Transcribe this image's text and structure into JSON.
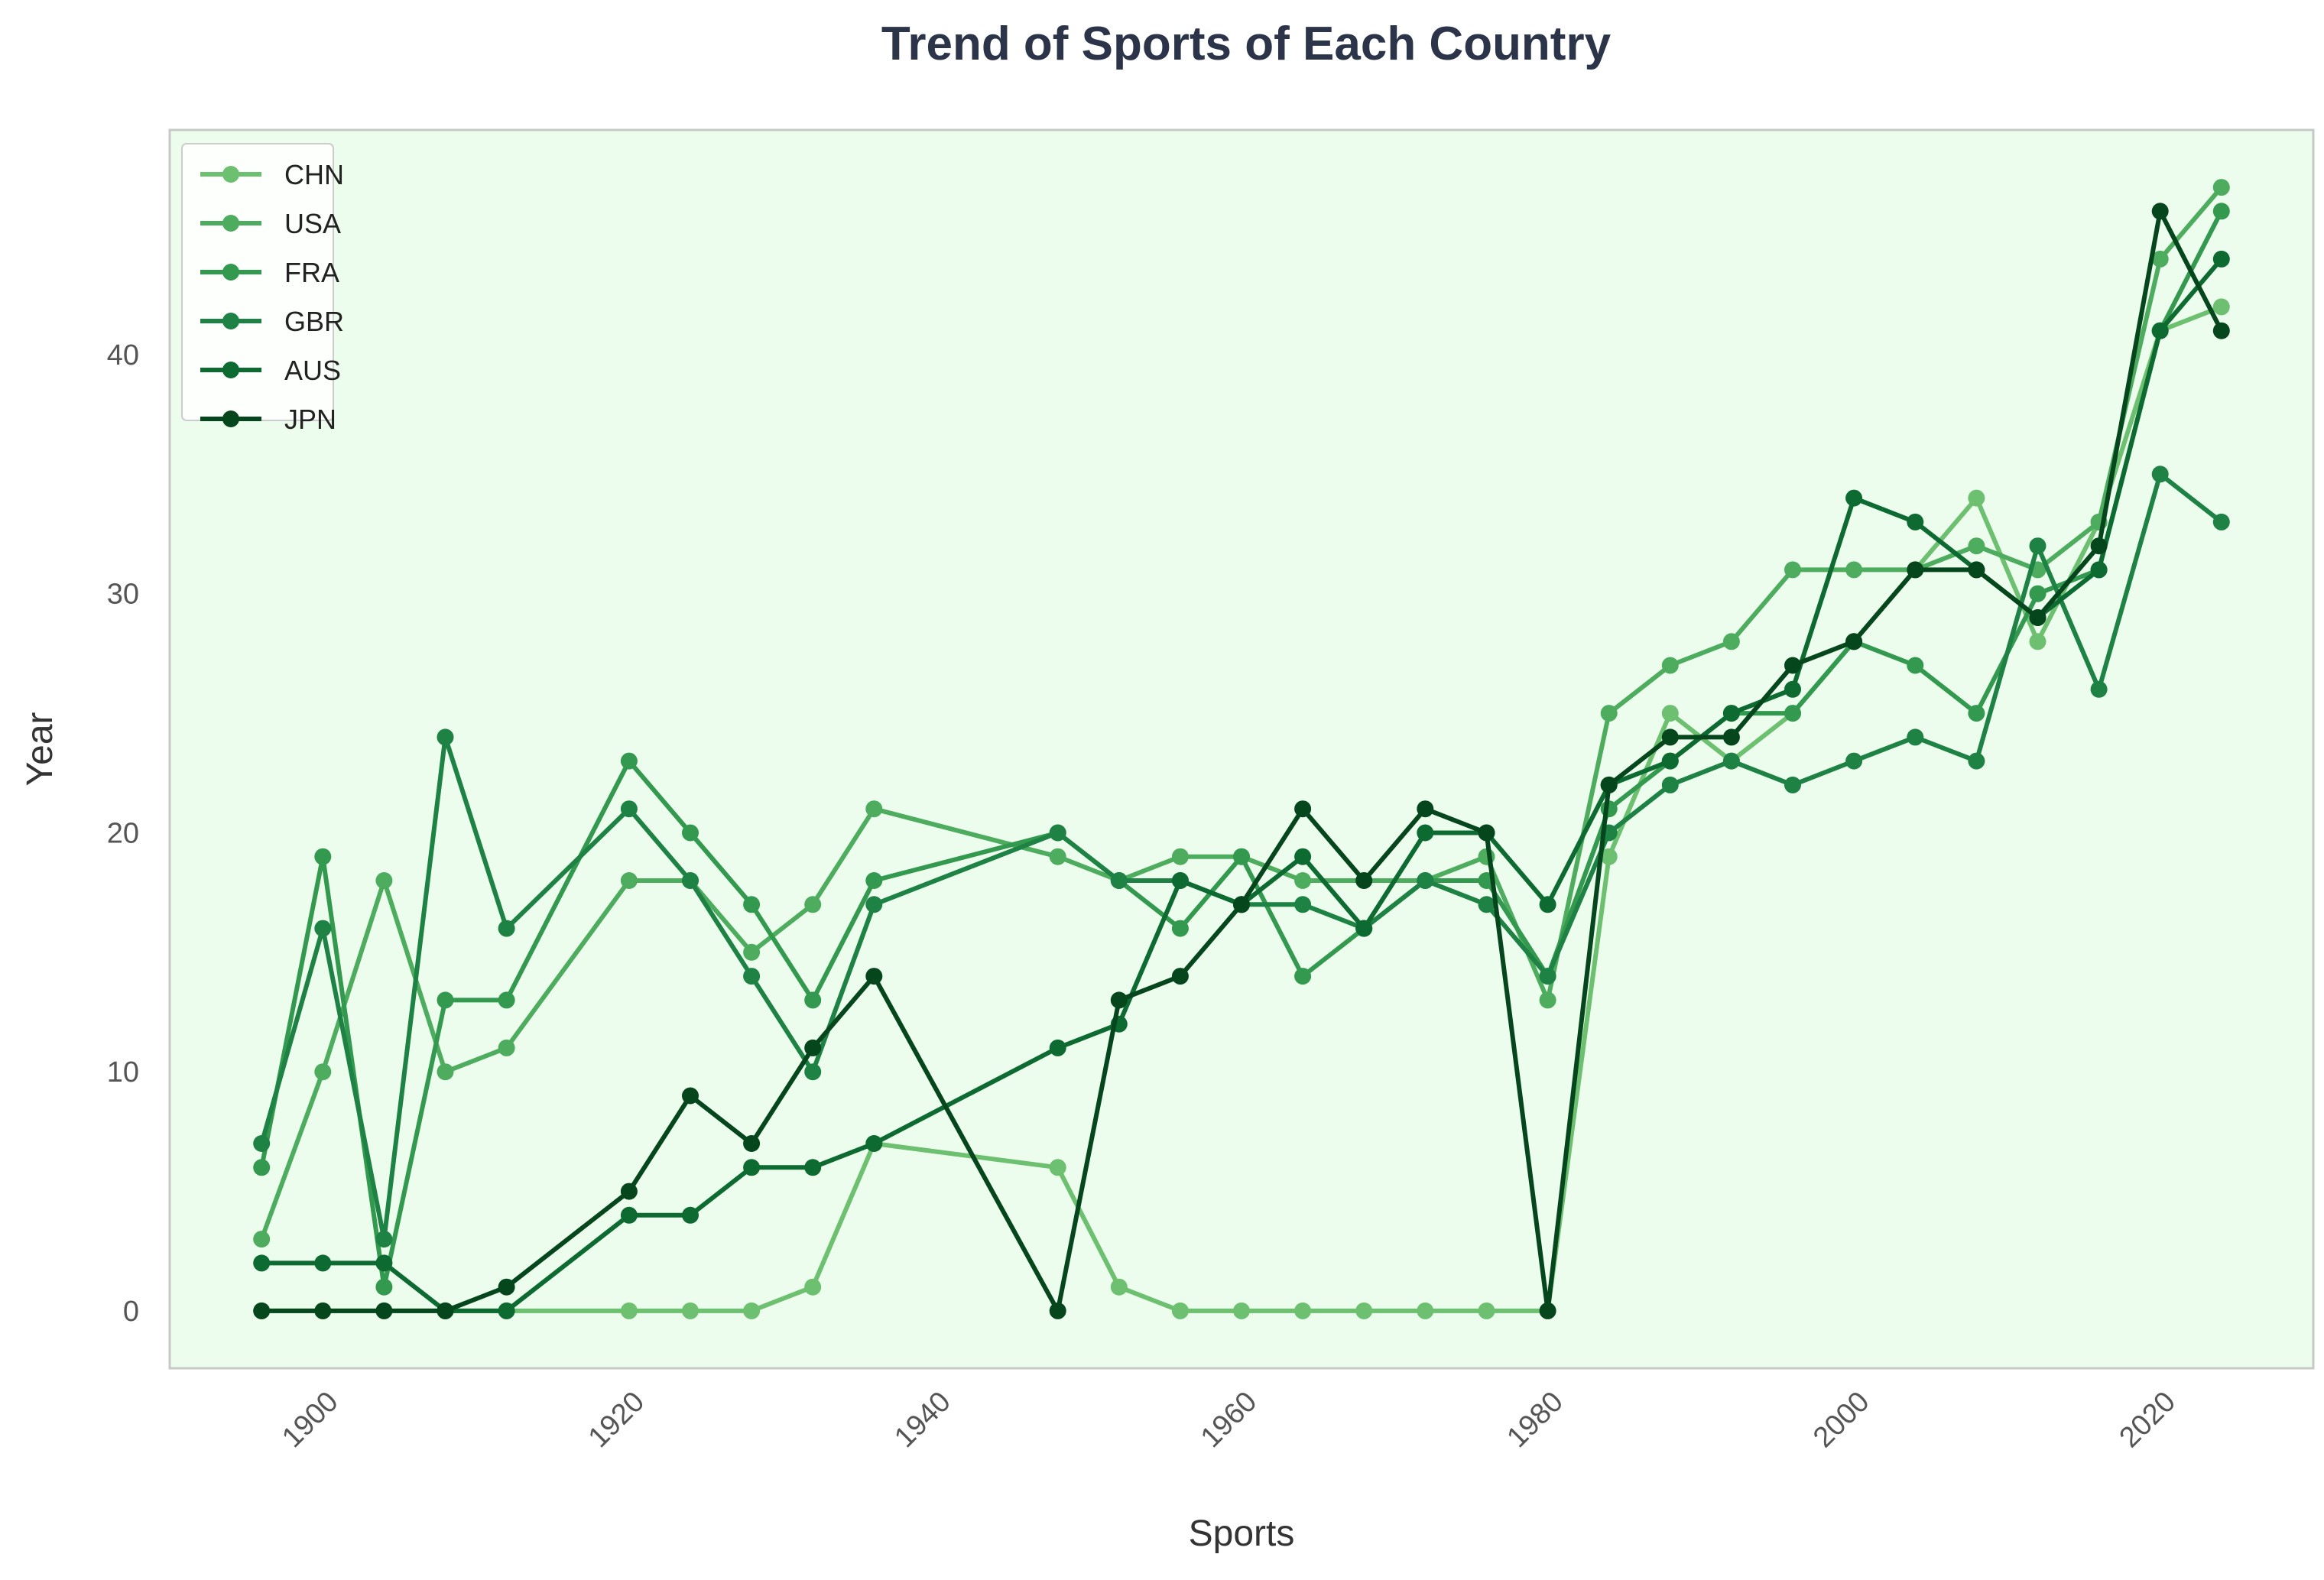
{
  "chart_data": {
    "type": "line",
    "title": "Trend of Sports of Each Country",
    "xlabel": "Sports",
    "ylabel": "Year",
    "xlim": [
      1890,
      2030
    ],
    "ylim": [
      -2.4,
      49.4
    ],
    "x_ticks": [
      1900,
      1920,
      1940,
      1960,
      1980,
      2000,
      2020
    ],
    "y_ticks": [
      0,
      10,
      20,
      30,
      40
    ],
    "grid": false,
    "legend_position": "top-left",
    "background": "#edfded",
    "x": [
      1896,
      1900,
      1904,
      1908,
      1912,
      1920,
      1924,
      1928,
      1932,
      1936,
      1948,
      1952,
      1956,
      1960,
      1964,
      1968,
      1972,
      1976,
      1980,
      1984,
      1988,
      1992,
      1996,
      2000,
      2004,
      2008,
      2012,
      2016,
      2020,
      2024
    ],
    "series": [
      {
        "name": "CHN",
        "color": "#6cc06f",
        "values": [
          0,
          0,
          0,
          0,
          0,
          0,
          0,
          0,
          1,
          7,
          6,
          1,
          0,
          0,
          0,
          0,
          0,
          0,
          0,
          19,
          25,
          23,
          25,
          28,
          31,
          34,
          28,
          33,
          41,
          42
        ]
      },
      {
        "name": "USA",
        "color": "#4dac5e",
        "values": [
          3,
          10,
          18,
          10,
          11,
          18,
          18,
          15,
          17,
          21,
          19,
          18,
          19,
          19,
          18,
          18,
          18,
          19,
          13,
          25,
          27,
          28,
          31,
          31,
          31,
          32,
          31,
          33,
          44,
          47
        ]
      },
      {
        "name": "FRA",
        "color": "#33994f",
        "values": [
          6,
          19,
          1,
          13,
          13,
          23,
          20,
          17,
          13,
          18,
          20,
          18,
          16,
          19,
          14,
          16,
          18,
          18,
          14,
          21,
          23,
          25,
          25,
          28,
          27,
          25,
          30,
          31,
          41,
          46
        ]
      },
      {
        "name": "GBR",
        "color": "#1d8243",
        "values": [
          7,
          16,
          3,
          24,
          16,
          21,
          18,
          14,
          10,
          17,
          20,
          18,
          18,
          17,
          17,
          16,
          18,
          17,
          14,
          20,
          22,
          23,
          22,
          23,
          24,
          23,
          32,
          26,
          35,
          33
        ]
      },
      {
        "name": "AUS",
        "color": "#0d6b32",
        "values": [
          2,
          2,
          2,
          0,
          0,
          4,
          4,
          6,
          6,
          7,
          11,
          12,
          18,
          17,
          19,
          16,
          20,
          20,
          17,
          22,
          23,
          25,
          26,
          34,
          33,
          31,
          29,
          31,
          41,
          44
        ]
      },
      {
        "name": "JPN",
        "color": "#06461d",
        "values": [
          0,
          0,
          0,
          0,
          1,
          5,
          9,
          7,
          11,
          14,
          0,
          13,
          14,
          17,
          21,
          18,
          21,
          20,
          0,
          22,
          24,
          24,
          27,
          28,
          31,
          31,
          29,
          32,
          46,
          41
        ]
      }
    ]
  }
}
